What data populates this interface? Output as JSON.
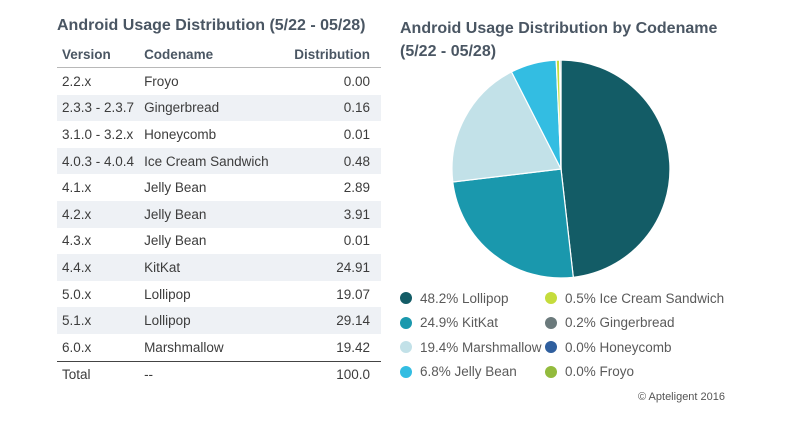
{
  "table": {
    "title": "Android Usage Distribution (5/22 - 05/28)",
    "headers": {
      "version": "Version",
      "codename": "Codename",
      "distribution": "Distribution"
    },
    "rows": [
      {
        "version": "2.2.x",
        "codename": "Froyo",
        "distribution": "0.00"
      },
      {
        "version": "2.3.3 - 2.3.7",
        "codename": "Gingerbread",
        "distribution": "0.16"
      },
      {
        "version": "3.1.0 - 3.2.x",
        "codename": "Honeycomb",
        "distribution": "0.01"
      },
      {
        "version": "4.0.3 - 4.0.4",
        "codename": "Ice Cream Sandwich",
        "distribution": "0.48"
      },
      {
        "version": "4.1.x",
        "codename": "Jelly Bean",
        "distribution": "2.89"
      },
      {
        "version": "4.2.x",
        "codename": "Jelly Bean",
        "distribution": "3.91"
      },
      {
        "version": "4.3.x",
        "codename": "Jelly Bean",
        "distribution": "0.01"
      },
      {
        "version": "4.4.x",
        "codename": "KitKat",
        "distribution": "24.91"
      },
      {
        "version": "5.0.x",
        "codename": "Lollipop",
        "distribution": "19.07"
      },
      {
        "version": "5.1.x",
        "codename": "Lollipop",
        "distribution": "29.14"
      },
      {
        "version": "6.0.x",
        "codename": "Marshmallow",
        "distribution": "19.42"
      }
    ],
    "total": {
      "version": "Total",
      "codename": "--",
      "distribution": "100.0"
    }
  },
  "chart_data": {
    "type": "pie",
    "title": "Android Usage Distribution by Codename (5/22 - 05/28)",
    "slices": [
      {
        "label": "48.2% Lollipop",
        "name": "Lollipop",
        "value": 48.2,
        "color": "#135c66"
      },
      {
        "label": "24.9% KitKat",
        "name": "KitKat",
        "value": 24.9,
        "color": "#1a98ad"
      },
      {
        "label": "19.4% Marshmallow",
        "name": "Marshmallow",
        "value": 19.4,
        "color": "#c2e1e8"
      },
      {
        "label": "6.8% Jelly Bean",
        "name": "Jelly Bean",
        "value": 6.8,
        "color": "#33bde2"
      },
      {
        "label": "0.5% Ice Cream Sandwich",
        "name": "Ice Cream Sandwich",
        "value": 0.5,
        "color": "#c5dc3c"
      },
      {
        "label": "0.2% Gingerbread",
        "name": "Gingerbread",
        "value": 0.2,
        "color": "#6b7a7c"
      },
      {
        "label": "0.0% Honeycomb",
        "name": "Honeycomb",
        "value": 0.0,
        "color": "#2f5f9e"
      },
      {
        "label": "0.0% Froyo",
        "name": "Froyo",
        "value": 0.0,
        "color": "#93bb3d"
      }
    ],
    "legend_placement": "bottom"
  },
  "copyright": "© Apteligent 2016"
}
